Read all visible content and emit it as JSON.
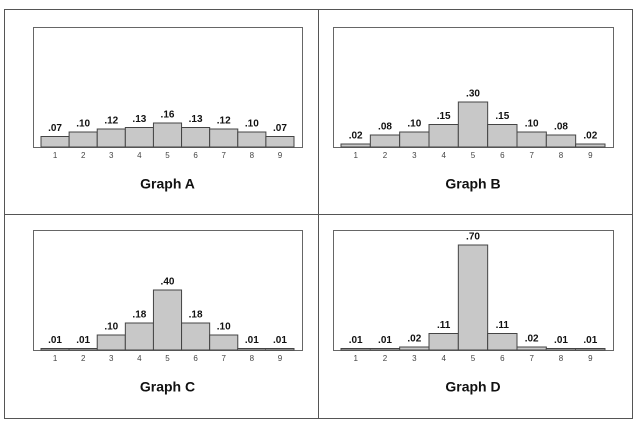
{
  "chart_data": [
    {
      "type": "bar",
      "title": "Graph A",
      "categories": [
        "1",
        "2",
        "3",
        "4",
        "5",
        "6",
        "7",
        "8",
        "9"
      ],
      "values": [
        0.07,
        0.1,
        0.12,
        0.13,
        0.16,
        0.13,
        0.12,
        0.1,
        0.07
      ],
      "value_labels": [
        ".07",
        ".10",
        ".12",
        ".13",
        ".16",
        ".13",
        ".12",
        ".10",
        ".07"
      ],
      "ylim": [
        0,
        0.8
      ],
      "color": "#c8c8c8"
    },
    {
      "type": "bar",
      "title": "Graph B",
      "categories": [
        "1",
        "2",
        "3",
        "4",
        "5",
        "6",
        "7",
        "8",
        "9"
      ],
      "values": [
        0.02,
        0.08,
        0.1,
        0.15,
        0.3,
        0.15,
        0.1,
        0.08,
        0.02
      ],
      "value_labels": [
        ".02",
        ".08",
        ".10",
        ".15",
        ".30",
        ".15",
        ".10",
        ".08",
        ".02"
      ],
      "ylim": [
        0,
        0.8
      ],
      "color": "#c8c8c8"
    },
    {
      "type": "bar",
      "title": "Graph C",
      "categories": [
        "1",
        "2",
        "3",
        "4",
        "5",
        "6",
        "7",
        "8",
        "9"
      ],
      "values": [
        0.01,
        0.01,
        0.1,
        0.18,
        0.4,
        0.18,
        0.1,
        0.01,
        0.01
      ],
      "value_labels": [
        ".01",
        ".01",
        ".10",
        ".18",
        ".40",
        ".18",
        ".10",
        ".01",
        ".01"
      ],
      "ylim": [
        0,
        0.8
      ],
      "color": "#c8c8c8"
    },
    {
      "type": "bar",
      "title": "Graph D",
      "categories": [
        "1",
        "2",
        "3",
        "4",
        "5",
        "6",
        "7",
        "8",
        "9"
      ],
      "values": [
        0.01,
        0.01,
        0.02,
        0.11,
        0.7,
        0.11,
        0.02,
        0.01,
        0.01
      ],
      "value_labels": [
        ".01",
        ".01",
        ".02",
        ".11",
        ".70",
        ".11",
        ".02",
        ".01",
        ".01"
      ],
      "ylim": [
        0,
        0.8
      ],
      "color": "#c8c8c8"
    }
  ]
}
